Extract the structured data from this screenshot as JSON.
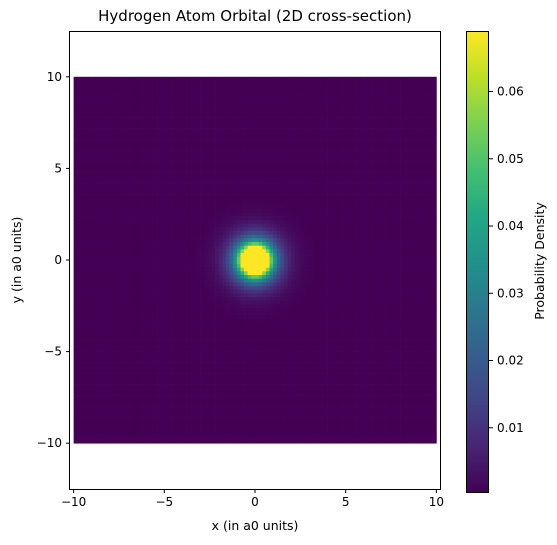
{
  "chart_data": {
    "type": "heatmap",
    "title": "Hydrogen Atom Orbital (2D cross-section)",
    "xlabel": "x (in a0 units)",
    "ylabel": "y (in a0 units)",
    "xlim": [
      -10.2,
      10.2
    ],
    "ylim": [
      -12.5,
      12.5
    ],
    "data_extent": {
      "x": [
        -10,
        10
      ],
      "y": [
        -10,
        10
      ]
    },
    "x_ticks": [
      {
        "value": -10,
        "label": "−10"
      },
      {
        "value": -5,
        "label": "−5"
      },
      {
        "value": 0,
        "label": "0"
      },
      {
        "value": 5,
        "label": "5"
      },
      {
        "value": 10,
        "label": "10"
      }
    ],
    "y_ticks": [
      {
        "value": -10,
        "label": "−10"
      },
      {
        "value": -5,
        "label": "−5"
      },
      {
        "value": 0,
        "label": "0"
      },
      {
        "value": 5,
        "label": "5"
      },
      {
        "value": 10,
        "label": "10"
      }
    ],
    "density_function": "exp(-2r)/pi",
    "peak_value": 0.069,
    "colormap": "viridis",
    "colorbar": {
      "label": "Probability Density",
      "range": [
        0.0003,
        0.069
      ],
      "ticks": [
        {
          "value": 0.01,
          "label": "0.01"
        },
        {
          "value": 0.02,
          "label": "0.02"
        },
        {
          "value": 0.03,
          "label": "0.03"
        },
        {
          "value": 0.04,
          "label": "0.04"
        },
        {
          "value": 0.05,
          "label": "0.05"
        },
        {
          "value": 0.06,
          "label": "0.06"
        }
      ]
    },
    "grid": false
  }
}
